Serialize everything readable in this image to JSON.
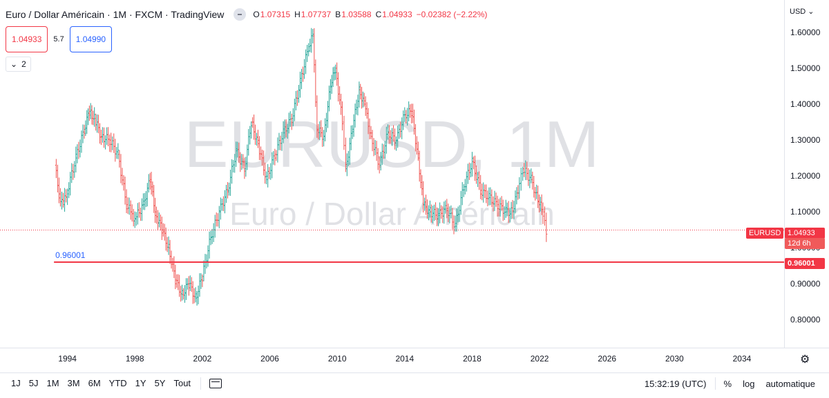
{
  "header": {
    "symbol_title": "Euro / Dollar Américain · 1M · FXCM · TradingView",
    "ohlc": {
      "o_label": "O",
      "o_value": "1.07315",
      "h_label": "H",
      "h_value": "1.07737",
      "b_label": "B",
      "b_value": "1.03588",
      "c_label": "C",
      "c_value": "1.04933",
      "change": "−0.02382 (−2.22%)"
    }
  },
  "trade": {
    "sell": "1.04933",
    "spread": "5.7",
    "buy": "1.04990"
  },
  "collapse_label": "2",
  "currency_label": "USD",
  "watermark": {
    "line1": "EURUSD, 1M",
    "line2": "Euro / Dollar Américain"
  },
  "badges": {
    "symbol": "EURUSD",
    "last_price": "1.04933",
    "countdown": "12d 6h",
    "hline_price": "0.96001",
    "hline_label": "0.96001"
  },
  "bottom": {
    "ranges": [
      "1J",
      "5J",
      "1M",
      "3M",
      "6M",
      "YTD",
      "1Y",
      "5Y",
      "Tout"
    ],
    "time": "15:32:19 (UTC)",
    "percent": "%",
    "log": "log",
    "auto": "automatique"
  },
  "colors": {
    "up": "#26a69a",
    "down": "#ef5350",
    "hline": "#f23645",
    "accent": "#2962ff"
  },
  "chart_data": {
    "type": "bar",
    "symbol": "EURUSD",
    "timeframe": "1M",
    "x_ticks": [
      "1994",
      "1998",
      "2002",
      "2006",
      "2010",
      "2014",
      "2018",
      "2022",
      "2026",
      "2030",
      "2034"
    ],
    "y_ticks": [
      "1.60000",
      "1.50000",
      "1.40000",
      "1.30000",
      "1.20000",
      "1.10000",
      "1.00000",
      "0.90000",
      "0.80000"
    ],
    "xlim": [
      1990,
      2036.5
    ],
    "ylim": [
      0.72,
      1.69
    ],
    "last_price": 1.04933,
    "horizontal_line": 0.96001,
    "series": [
      {
        "x": [
          1993.25,
          1993.5,
          1993.75,
          1994.0,
          1994.5,
          1995.0,
          1995.3,
          1995.6,
          1996.0,
          1996.5,
          1997.0,
          1997.5,
          1997.75,
          1998.0,
          1998.5,
          1998.9,
          1999.2,
          1999.6,
          2000.0,
          2000.4,
          2000.8,
          2001.2,
          2001.6,
          2002.0,
          2002.5,
          2003.0,
          2003.5,
          2004.0,
          2004.5,
          2004.9,
          2005.3,
          2005.8,
          2006.3,
          2006.8,
          2007.3,
          2007.8,
          2008.3,
          2008.55,
          2008.8,
          2009.2,
          2009.6,
          2009.9,
          2010.3,
          2010.5,
          2010.9,
          2011.3,
          2011.6,
          2012.0,
          2012.5,
          2013.0,
          2013.5,
          2014.0,
          2014.4,
          2014.8,
          2015.1,
          2015.5,
          2016.0,
          2016.5,
          2017.0,
          2017.5,
          2018.0,
          2018.5,
          2019.0,
          2019.5,
          2020.0,
          2020.4,
          2020.8,
          2021.0,
          2021.5,
          2021.9,
          2022.2,
          2022.4
        ],
        "values": [
          1.23,
          1.15,
          1.12,
          1.16,
          1.25,
          1.33,
          1.38,
          1.36,
          1.31,
          1.3,
          1.26,
          1.12,
          1.1,
          1.08,
          1.12,
          1.19,
          1.1,
          1.05,
          1.0,
          0.91,
          0.87,
          0.9,
          0.86,
          0.92,
          1.03,
          1.1,
          1.16,
          1.27,
          1.22,
          1.35,
          1.29,
          1.19,
          1.26,
          1.32,
          1.36,
          1.46,
          1.56,
          1.59,
          1.33,
          1.31,
          1.45,
          1.5,
          1.35,
          1.22,
          1.33,
          1.44,
          1.4,
          1.31,
          1.23,
          1.32,
          1.3,
          1.37,
          1.38,
          1.25,
          1.12,
          1.1,
          1.09,
          1.11,
          1.06,
          1.17,
          1.24,
          1.16,
          1.14,
          1.12,
          1.1,
          1.1,
          1.18,
          1.22,
          1.19,
          1.13,
          1.1,
          1.05
        ]
      }
    ]
  }
}
